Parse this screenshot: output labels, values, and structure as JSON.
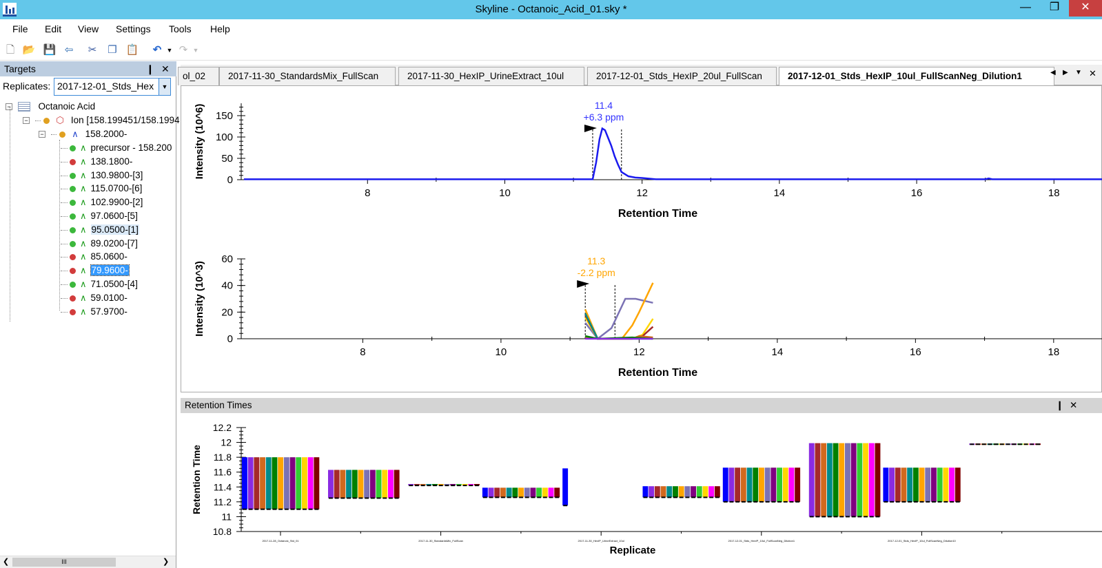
{
  "window": {
    "title": "Skyline - Octanoic_Acid_01.sky *",
    "minimize": "—",
    "restore": "❐",
    "close": "✕"
  },
  "menu": [
    "File",
    "Edit",
    "View",
    "Settings",
    "Tools",
    "Help"
  ],
  "toolbar": {
    "icons": [
      "new-file-icon",
      "open-folder-icon",
      "save-icon",
      "import-icon",
      "cut-icon",
      "copy-icon",
      "paste-icon",
      "undo-icon",
      "redo-icon"
    ]
  },
  "targets": {
    "title": "Targets",
    "pin": "❙",
    "close": "✕",
    "replicates_label": "Replicates:",
    "replicate_value": "2017-12-01_Stds_Hex",
    "molecule": "Octanoic Acid",
    "ion": "Ion [158.199451/158.1994",
    "precursor": "158.2000-",
    "transitions": [
      {
        "label": "precursor - 158.200",
        "status": "green"
      },
      {
        "label": "138.1800-",
        "status": "red"
      },
      {
        "label": "130.9800-[3]",
        "status": "green"
      },
      {
        "label": "115.0700-[6]",
        "status": "green"
      },
      {
        "label": "102.9900-[2]",
        "status": "green"
      },
      {
        "label": "97.0600-[5]",
        "status": "green"
      },
      {
        "label": "95.0500-[1]",
        "status": "green",
        "highlight": true
      },
      {
        "label": "89.0200-[7]",
        "status": "green"
      },
      {
        "label": "85.0600-",
        "status": "red"
      },
      {
        "label": "79.9600-",
        "status": "red",
        "selected": true
      },
      {
        "label": "71.0500-[4]",
        "status": "green"
      },
      {
        "label": "59.0100-",
        "status": "red"
      },
      {
        "label": "57.9700-",
        "status": "red"
      }
    ],
    "scroll_thumb": "III"
  },
  "colors": {
    "green": "#3cb83c",
    "red": "#d23c3c",
    "gold": "#e0a020",
    "title_bar": "#63c7ea"
  },
  "tabs": [
    "ol_02",
    "2017-11-30_StandardsMix_FullScan",
    "2017-11-30_HexIP_UrineExtract_10ul",
    "2017-12-01_Stds_HexIP_20ul_FullScan",
    "2017-12-01_Stds_HexIP_10ul_FullScanNeg_Dilution1"
  ],
  "tab_controls": [
    "◀",
    "▶",
    "▼",
    "✕"
  ],
  "chart_data": [
    {
      "type": "line",
      "ylabel": "Intensity (10^6)",
      "xlabel": "Retention Time",
      "xlim": [
        6.16,
        18.7
      ],
      "ylim": [
        0,
        179
      ],
      "xticks": [
        8,
        10,
        12,
        14,
        16,
        18
      ],
      "yticks": [
        0,
        50,
        100,
        150
      ],
      "annotation": {
        "rt": "11.4",
        "ppm": "+6.3 ppm",
        "color": "#3333ff"
      },
      "boundaries": [
        11.28,
        11.7
      ],
      "series": [
        {
          "color": "#1a1aee",
          "x": [
            6.2,
            11.2,
            11.28,
            11.33,
            11.38,
            11.42,
            11.46,
            11.5,
            11.55,
            11.6,
            11.65,
            11.7,
            11.8,
            11.9,
            12.0,
            12.2,
            12.3,
            17.0,
            17.05,
            17.1,
            18.7
          ],
          "y": [
            1,
            1,
            1,
            40,
            95,
            120,
            116,
            100,
            80,
            55,
            35,
            18,
            8,
            5,
            4,
            1,
            1,
            1,
            3,
            1,
            1
          ]
        }
      ]
    },
    {
      "type": "line",
      "ylabel": "Intensity (10^3)",
      "xlabel": "Retention Time",
      "xlim": [
        6.24,
        18.7
      ],
      "ylim": [
        0,
        60
      ],
      "xticks": [
        8,
        10,
        12,
        14,
        16,
        18
      ],
      "yticks": [
        0,
        20,
        40,
        60
      ],
      "annotation": {
        "rt": "11.3",
        "ppm": "-2.2 ppm",
        "color": "#ffa500"
      },
      "boundaries": [
        11.22,
        11.65
      ],
      "series": [
        {
          "color": "#7b72b4",
          "x": [
            11.22,
            11.4,
            11.6,
            11.8,
            11.95,
            12.2
          ],
          "y": [
            12,
            0,
            8,
            30,
            30,
            27
          ]
        },
        {
          "color": "#ffa500",
          "x": [
            11.22,
            11.4,
            11.75,
            11.9,
            12.0,
            12.2
          ],
          "y": [
            22,
            0,
            0,
            10,
            20,
            42
          ]
        },
        {
          "color": "#ffd700",
          "x": [
            11.22,
            11.4,
            11.9,
            12.05,
            12.2
          ],
          "y": [
            16,
            0,
            0,
            3,
            15
          ]
        },
        {
          "color": "#a52a2a",
          "x": [
            11.22,
            11.4,
            11.9,
            12.05,
            12.2
          ],
          "y": [
            18,
            0,
            0,
            2,
            9
          ]
        },
        {
          "color": "#008b8b",
          "x": [
            11.22,
            11.4,
            12.2
          ],
          "y": [
            19,
            0,
            0
          ]
        },
        {
          "color": "#d2691e",
          "x": [
            11.22,
            11.4,
            11.9,
            12.0,
            12.2
          ],
          "y": [
            1,
            0,
            0,
            2,
            1
          ]
        },
        {
          "color": "#008000",
          "x": [
            11.22,
            11.4,
            11.9,
            12.2
          ],
          "y": [
            2,
            0,
            1,
            0
          ]
        },
        {
          "color": "#8a2be2",
          "x": [
            11.22,
            12.2
          ],
          "y": [
            0,
            0
          ]
        }
      ]
    },
    {
      "type": "bar",
      "title": "Retention Times",
      "xlabel": "Replicate",
      "ylabel": "Retention Time",
      "ylim": [
        10.8,
        12.2
      ],
      "yticks": [
        10.8,
        11,
        11.2,
        11.4,
        11.6,
        11.8,
        12,
        12.2
      ],
      "transition_colors": [
        "#0000ff",
        "#8a2be2",
        "#a52a2a",
        "#d2691e",
        "#008b8b",
        "#008000",
        "#ffa500",
        "#7b72b4",
        "#800080",
        "#32cd32",
        "#ffd700",
        "#ff00ff",
        "#800000"
      ],
      "categories": [
        "2017-11-28_Octanoic_Std_01",
        "",
        "2017-11-30_StandardsMix_FullScan",
        "",
        "2017-11-30_HexIP_UrineExtract_10ul",
        "",
        "2017-12-01_Stds_HexIP_10ul_FullScanNeg_Dilution1",
        "",
        "2017-12-01_Stds_HexIP_10ul_FullScanNeg_Dilution10",
        ""
      ],
      "groups": [
        {
          "lo": 11.1,
          "hi": 11.8,
          "present": [
            0,
            1,
            2,
            3,
            4,
            5,
            6,
            7,
            8,
            9,
            10,
            11,
            12
          ]
        },
        {
          "lo": 11.25,
          "hi": 11.63,
          "present": [
            1,
            2,
            3,
            4,
            5,
            6,
            7,
            8,
            9,
            10,
            11,
            12
          ]
        },
        {
          "lo": 11.42,
          "hi": 11.44,
          "present": [
            1,
            2,
            3,
            4,
            5,
            6,
            7,
            8,
            9,
            10,
            11,
            12
          ]
        },
        {
          "lo": 11.26,
          "hi": 11.39,
          "present": [
            0,
            1,
            2,
            3,
            4,
            5,
            6,
            7,
            8,
            9,
            10,
            11,
            12
          ]
        },
        {
          "lo": 11.15,
          "hi": 11.65,
          "present": [
            0
          ]
        },
        {
          "lo": 11.26,
          "hi": 11.41,
          "present": [
            0,
            1,
            2,
            3,
            4,
            5,
            6,
            7,
            8,
            9,
            10,
            11,
            12
          ]
        },
        {
          "lo": 11.2,
          "hi": 11.66,
          "present": [
            0,
            1,
            2,
            3,
            4,
            5,
            6,
            7,
            8,
            9,
            10,
            11,
            12
          ]
        },
        {
          "lo": 11.0,
          "hi": 11.99,
          "present": [
            1,
            2,
            3,
            4,
            5,
            6,
            7,
            8,
            9,
            10,
            11,
            12
          ]
        },
        {
          "lo": 11.2,
          "hi": 11.66,
          "present": [
            0,
            1,
            2,
            3,
            4,
            5,
            6,
            7,
            8,
            9,
            10,
            11,
            12
          ]
        },
        {
          "lo": 11.975,
          "hi": 11.985,
          "present": [
            1,
            2,
            3,
            4,
            5,
            6,
            7,
            8,
            9,
            10,
            11,
            12
          ]
        }
      ]
    }
  ],
  "rt_panel": {
    "title": "Retention Times",
    "pin": "❙",
    "close": "✕"
  }
}
